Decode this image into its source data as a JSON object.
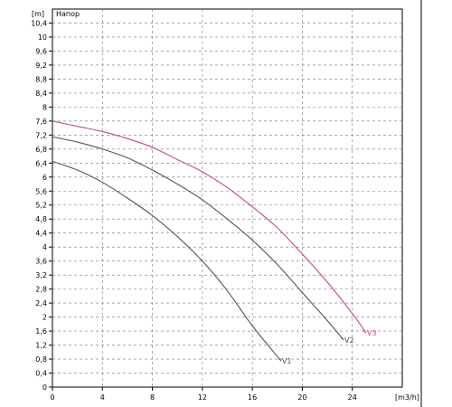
{
  "chart_data": {
    "type": "line",
    "title": "Напор",
    "xlabel": "[m3/h]",
    "ylabel": "[m]",
    "xlim": [
      0,
      28
    ],
    "ylim": [
      0,
      10.8
    ],
    "x_ticks": [
      0,
      4,
      8,
      12,
      16,
      20,
      24
    ],
    "x_tick_labels": [
      "0",
      "4",
      "8",
      "12",
      "16",
      "20",
      "24"
    ],
    "y_ticks": [
      0,
      0.4,
      0.8,
      1.2,
      1.6,
      2,
      2.4,
      2.8,
      3.2,
      3.6,
      4,
      4.4,
      4.8,
      5.2,
      5.6,
      6,
      6.4,
      6.8,
      7.2,
      7.6,
      8,
      8.4,
      8.8,
      9.2,
      9.6,
      10,
      10.4
    ],
    "y_tick_labels": [
      "0",
      "0,4",
      "0,8",
      "1,2",
      "1,6",
      "2",
      "2,4",
      "2,8",
      "3,2",
      "3,6",
      "4",
      "4,4",
      "4,8",
      "5,2",
      "5,6",
      "6",
      "6,4",
      "6,8",
      "7,2",
      "7,6",
      "8",
      "8,4",
      "8,8",
      "9,2",
      "9,6",
      "10",
      "10,4"
    ],
    "grid": true,
    "series": [
      {
        "name": "V1",
        "color": "#555555",
        "x": [
          0,
          2,
          4,
          6,
          8,
          10,
          12,
          14,
          16,
          18.3
        ],
        "y": [
          6.45,
          6.2,
          5.85,
          5.4,
          4.9,
          4.3,
          3.6,
          2.75,
          1.75,
          0.75
        ]
      },
      {
        "name": "V2",
        "color": "#555555",
        "x": [
          0,
          2,
          4,
          6,
          8,
          10,
          12,
          14,
          16,
          18,
          20,
          22,
          23.3
        ],
        "y": [
          7.15,
          7.0,
          6.8,
          6.55,
          6.2,
          5.8,
          5.35,
          4.8,
          4.2,
          3.5,
          2.7,
          1.9,
          1.35
        ]
      },
      {
        "name": "V3",
        "color": "#c0506a",
        "x": [
          0,
          2,
          4,
          6,
          8,
          10,
          12,
          14,
          16,
          18,
          20,
          22,
          24,
          25.1
        ],
        "y": [
          7.6,
          7.45,
          7.3,
          7.1,
          6.85,
          6.5,
          6.15,
          5.7,
          5.15,
          4.55,
          3.8,
          3.0,
          2.1,
          1.55
        ]
      }
    ]
  }
}
